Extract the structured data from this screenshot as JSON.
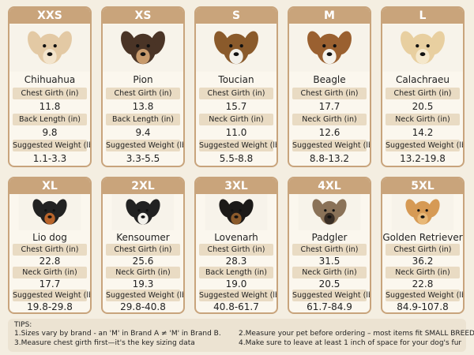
{
  "cards": [
    {
      "size": "XXS",
      "breed": "Chihuahua",
      "rows": [
        {
          "label": "Chest Girth (in)",
          "value": "11.8"
        },
        {
          "label": "Back Length (in)",
          "value": "9.8"
        },
        {
          "label": "Suggested Weight (lb)",
          "value": "1.1-3.3"
        }
      ]
    },
    {
      "size": "XS",
      "breed": "Pion",
      "rows": [
        {
          "label": "Chest Girth (in)",
          "value": "13.8"
        },
        {
          "label": "Back Length (in)",
          "value": "9.4"
        },
        {
          "label": "Suggested Weight (lb)",
          "value": "3.3-5.5"
        }
      ]
    },
    {
      "size": "S",
      "breed": "Toucian",
      "rows": [
        {
          "label": "Chest Girth (in)",
          "value": "15.7"
        },
        {
          "label": "Neck Girth (in)",
          "value": "11.0"
        },
        {
          "label": "Suggested Weight (lb)",
          "value": "5.5-8.8"
        }
      ]
    },
    {
      "size": "M",
      "breed": "Beagle",
      "rows": [
        {
          "label": "Chest Girth (in)",
          "value": "17.7"
        },
        {
          "label": "Neck Girth (in)",
          "value": "12.6"
        },
        {
          "label": "Suggested Weight (lb)",
          "value": "8.8-13.2"
        }
      ]
    },
    {
      "size": "L",
      "breed": "Calachraeu",
      "rows": [
        {
          "label": "Chest Girth (in)",
          "value": "20.5"
        },
        {
          "label": "Neck Girth (in)",
          "value": "14.2"
        },
        {
          "label": "Suggested Weight (lb)",
          "value": "13.2-19.8"
        }
      ]
    },
    {
      "size": "XL",
      "breed": "Lio dog",
      "rows": [
        {
          "label": "Chest Girth (in)",
          "value": "22.8"
        },
        {
          "label": "Neck Girth (in)",
          "value": "17.7"
        },
        {
          "label": "Suggested Weight (lb)",
          "value": "19.8-29.8"
        }
      ]
    },
    {
      "size": "2XL",
      "breed": "Kensoumer",
      "rows": [
        {
          "label": "Chest Girth (in)",
          "value": "25.6"
        },
        {
          "label": "Neck Girth (in)",
          "value": "19.3"
        },
        {
          "label": "Suggested Weight (lb)",
          "value": "29.8-40.8"
        }
      ]
    },
    {
      "size": "3XL",
      "breed": "Lovenarh",
      "rows": [
        {
          "label": "Chest Girth (in)",
          "value": "28.3"
        },
        {
          "label": "Back Length (in)",
          "value": "19.0"
        },
        {
          "label": "Suggested Weight (lb)",
          "value": "40.8-61.7"
        }
      ]
    },
    {
      "size": "4XL",
      "breed": "Padgler",
      "rows": [
        {
          "label": "Chest Girth (in)",
          "value": "31.5"
        },
        {
          "label": "Neck Girth (in)",
          "value": "20.5"
        },
        {
          "label": "Suggested Weight (lb)",
          "value": "61.7-84.9"
        }
      ]
    },
    {
      "size": "5XL",
      "breed": "Golden Retriever",
      "rows": [
        {
          "label": "Chest Girth (in)",
          "value": "36.2"
        },
        {
          "label": "Neck Girth (in)",
          "value": "22.8"
        },
        {
          "label": "Suggested Weight (lb)",
          "value": "84.9-107.8"
        }
      ]
    }
  ],
  "tips": {
    "title": "TIPS:",
    "items": [
      "1.Sizes vary by brand - an 'M' in Brand A ≠ 'M' in Brand B.",
      "2.Measure your pet before ordering – most items fit SMALL BREEDS",
      "3.Measure chest girth first—it's the key sizing data",
      "4.Make sure to leave at least 1 inch of space for your dog's fur"
    ]
  }
}
